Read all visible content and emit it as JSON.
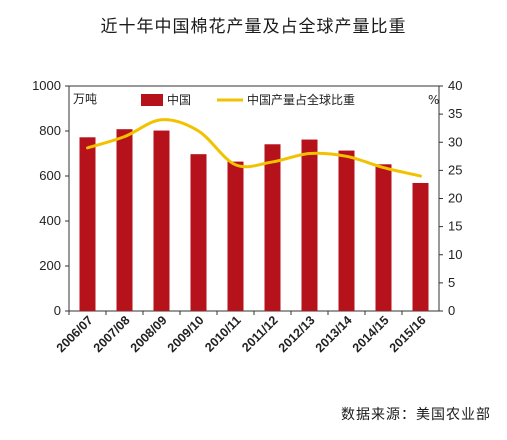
{
  "title": "近十年中国棉花产量及占全球产量比重",
  "source": "数据来源：美国农业部",
  "chart_data": {
    "type": "bar",
    "categories": [
      "2006/07",
      "2007/08",
      "2008/09",
      "2009/10",
      "2010/11",
      "2011/12",
      "2012/13",
      "2013/14",
      "2014/15",
      "2015/16"
    ],
    "series": [
      {
        "name": "中国",
        "type": "bar",
        "axis": "left",
        "color": "#b5121b",
        "values": [
          772,
          808,
          802,
          697,
          664,
          741,
          762,
          713,
          652,
          569
        ]
      },
      {
        "name": "中国产量占全球比重",
        "type": "line",
        "axis": "right",
        "color": "#f2c200",
        "values": [
          29,
          31,
          34,
          32,
          26,
          26.5,
          28,
          27.5,
          25.5,
          24
        ]
      }
    ],
    "left_axis": {
      "unit": "万吨",
      "ylim": [
        0,
        1000
      ],
      "ticks": [
        0,
        200,
        400,
        600,
        800,
        1000
      ]
    },
    "right_axis": {
      "unit": "%",
      "ylim": [
        0,
        40
      ],
      "ticks": [
        0,
        5,
        10,
        15,
        20,
        25,
        30,
        35,
        40
      ]
    },
    "legend_position": "top",
    "grid": false
  }
}
